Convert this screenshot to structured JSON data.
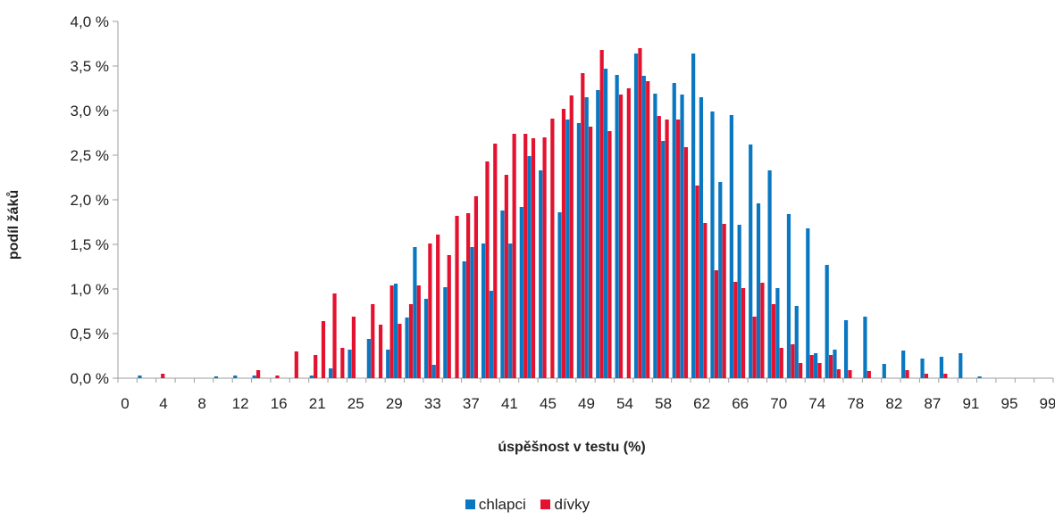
{
  "colors": {
    "chlapci": "#0a77c1",
    "divky": "#e3122f",
    "axis": "#9e9e9e"
  },
  "chart_data": {
    "type": "bar",
    "xlabel": "úspěšnost v testu (%)",
    "ylabel": "podíl žáků",
    "ylim": [
      0,
      4.0
    ],
    "y_ticks": [
      0,
      0.5,
      1.0,
      1.5,
      2.0,
      2.5,
      3.0,
      3.5,
      4.0
    ],
    "y_tick_labels": [
      "0,0 %",
      "0,5 %",
      "1,0 %",
      "1,5 %",
      "2,0 %",
      "2,5 %",
      "3,0 %",
      "3,5 %",
      "4,0 %"
    ],
    "x_tick_labels": [
      "0",
      "4",
      "8",
      "12",
      "16",
      "21",
      "25",
      "29",
      "33",
      "37",
      "41",
      "45",
      "49",
      "54",
      "58",
      "62",
      "66",
      "70",
      "74",
      "78",
      "82",
      "87",
      "91",
      "95",
      "99"
    ],
    "grid": false,
    "legend_position": "bottom",
    "categories_count": 49,
    "series": [
      {
        "name": "chlapci",
        "values": [
          0,
          0.03,
          0,
          0,
          0,
          0.02,
          0.03,
          0.03,
          0,
          0,
          0.03,
          0.11,
          0.32,
          0.44,
          0.32,
          0.68,
          0.89,
          1.02,
          1.31,
          1.51,
          1.88,
          1.92,
          2.33,
          1.86,
          2.86,
          3.23,
          3.4,
          3.64,
          3.19,
          3.31,
          3.64,
          2.99,
          2.95,
          2.62,
          2.33,
          1.84,
          1.68,
          1.27,
          0.65,
          0.69,
          0.16,
          0.31,
          0.22,
          0.24,
          0.28,
          0.02,
          0,
          0,
          0
        ],
        "values2": [
          0,
          0,
          0,
          0,
          0,
          0,
          0,
          0,
          0,
          0,
          0,
          0,
          0,
          0,
          1.06,
          1.47,
          0.15,
          0,
          1.47,
          0.98,
          1.51,
          2.49,
          0,
          2.9,
          3.15,
          3.47,
          0,
          3.39,
          2.66,
          3.18,
          3.15,
          2.2,
          1.72,
          1.96,
          1.01,
          0.81,
          0.28,
          0.32,
          0,
          0,
          0,
          0,
          0,
          0,
          0,
          0,
          0,
          0,
          0
        ]
      },
      {
        "name": "dívky",
        "values": [
          0,
          0,
          0.05,
          0,
          0,
          0,
          0,
          0.09,
          0.03,
          0.3,
          0.26,
          0.95,
          0.69,
          0.83,
          1.04,
          0.83,
          1.51,
          1.38,
          1.85,
          2.43,
          2.28,
          2.74,
          2.7,
          3.02,
          3.42,
          3.68,
          3.18,
          3.7,
          2.94,
          2.9,
          2.16,
          1.21,
          1.08,
          0.69,
          0.83,
          0.38,
          0.26,
          0.26,
          0.09,
          0.08,
          0,
          0.09,
          0.05,
          0.05,
          0,
          0,
          0,
          0,
          0
        ],
        "values2": [
          0,
          0,
          0,
          0,
          0,
          0,
          0,
          0,
          0,
          0,
          0.64,
          0.34,
          0,
          0.6,
          0.61,
          1.04,
          1.61,
          1.82,
          2.04,
          2.63,
          2.74,
          2.69,
          2.91,
          3.17,
          2.82,
          2.77,
          3.25,
          3.33,
          2.9,
          2.59,
          1.74,
          1.73,
          1.01,
          1.07,
          0.34,
          0.17,
          0.17,
          0.1,
          0,
          0,
          0,
          0,
          0,
          0,
          0,
          0,
          0,
          0,
          0
        ]
      }
    ]
  }
}
